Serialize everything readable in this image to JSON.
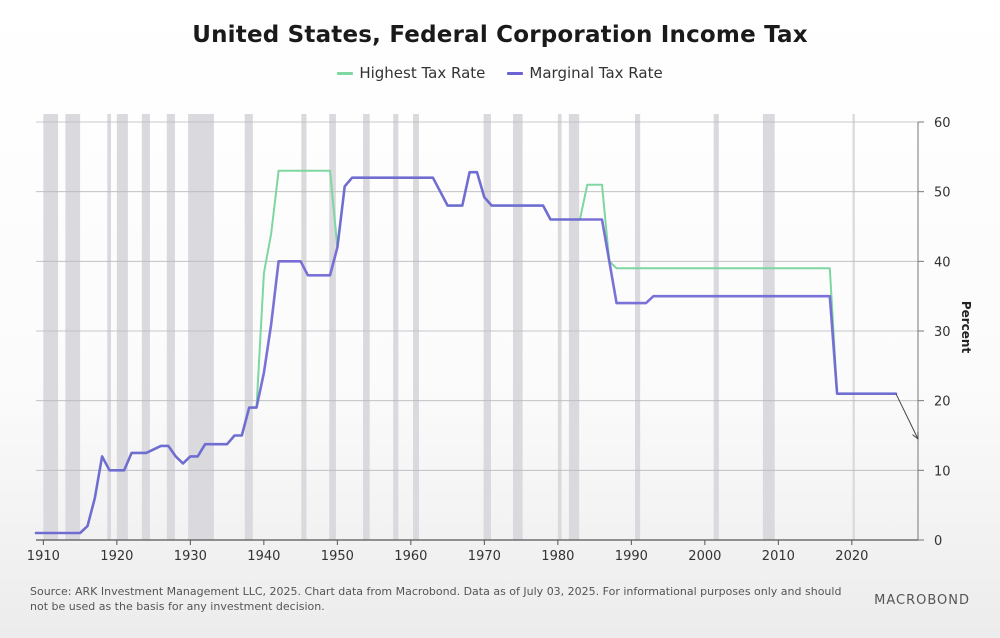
{
  "chart_data": {
    "type": "line",
    "title": "United States, Federal Corporation Income Tax",
    "ylabel": "Percent",
    "xlabel": "",
    "xlim": [
      1909,
      2029
    ],
    "ylim": [
      0,
      60
    ],
    "x_ticks": [
      1910,
      1920,
      1930,
      1940,
      1950,
      1960,
      1970,
      1980,
      1990,
      2000,
      2010,
      2020
    ],
    "y_ticks": [
      0,
      10,
      20,
      30,
      40,
      50,
      60
    ],
    "legend_position": "top-center",
    "grid": true,
    "recession_bands": [
      [
        1910.0,
        1912.0
      ],
      [
        1913.0,
        1915.0
      ],
      [
        1918.7,
        1919.2
      ],
      [
        1920.0,
        1921.5
      ],
      [
        1923.4,
        1924.5
      ],
      [
        1926.8,
        1927.9
      ],
      [
        1929.7,
        1933.2
      ],
      [
        1937.4,
        1938.5
      ],
      [
        1945.1,
        1945.8
      ],
      [
        1948.9,
        1949.8
      ],
      [
        1953.5,
        1954.4
      ],
      [
        1957.6,
        1958.3
      ],
      [
        1960.3,
        1961.1
      ],
      [
        1969.9,
        1970.9
      ],
      [
        1973.9,
        1975.2
      ],
      [
        1980.0,
        1980.5
      ],
      [
        1981.5,
        1982.9
      ],
      [
        1990.5,
        1991.2
      ],
      [
        2001.2,
        2001.9
      ],
      [
        2007.9,
        2009.5
      ],
      [
        2020.1,
        2020.4
      ]
    ],
    "series": [
      {
        "name": "Highest Tax Rate",
        "color": "#7ed6a0",
        "points": [
          [
            1909,
            1
          ],
          [
            1915,
            1
          ],
          [
            1916,
            2
          ],
          [
            1917,
            6
          ],
          [
            1918,
            12
          ],
          [
            1919,
            10
          ],
          [
            1921,
            10
          ],
          [
            1922,
            12.5
          ],
          [
            1924,
            12.5
          ],
          [
            1925,
            13
          ],
          [
            1926,
            13.5
          ],
          [
            1927,
            13.5
          ],
          [
            1928,
            12
          ],
          [
            1929,
            11
          ],
          [
            1930,
            12
          ],
          [
            1931,
            12
          ],
          [
            1932,
            13.75
          ],
          [
            1935,
            13.75
          ],
          [
            1936,
            15
          ],
          [
            1937,
            15
          ],
          [
            1938,
            19
          ],
          [
            1939,
            19
          ],
          [
            1940,
            38.3
          ],
          [
            1941,
            44
          ],
          [
            1942,
            53
          ],
          [
            1949,
            53
          ],
          [
            1950,
            42
          ],
          [
            1951,
            50.75
          ],
          [
            1952,
            52
          ],
          [
            1963,
            52
          ],
          [
            1964,
            50
          ],
          [
            1965,
            48
          ],
          [
            1967,
            48
          ],
          [
            1968,
            52.8
          ],
          [
            1969,
            52.8
          ],
          [
            1970,
            49.2
          ],
          [
            1971,
            48
          ],
          [
            1978,
            48
          ],
          [
            1979,
            46
          ],
          [
            1983,
            46
          ],
          [
            1984,
            51
          ],
          [
            1986,
            51
          ],
          [
            1987,
            40
          ],
          [
            1988,
            39
          ],
          [
            2017,
            39
          ],
          [
            2018,
            21
          ],
          [
            2026,
            21
          ]
        ]
      },
      {
        "name": "Marginal Tax Rate",
        "color": "#6b63d4",
        "points": [
          [
            1909,
            1
          ],
          [
            1915,
            1
          ],
          [
            1916,
            2
          ],
          [
            1917,
            6
          ],
          [
            1918,
            12
          ],
          [
            1919,
            10
          ],
          [
            1921,
            10
          ],
          [
            1922,
            12.5
          ],
          [
            1924,
            12.5
          ],
          [
            1925,
            13
          ],
          [
            1926,
            13.5
          ],
          [
            1927,
            13.5
          ],
          [
            1928,
            12
          ],
          [
            1929,
            11
          ],
          [
            1930,
            12
          ],
          [
            1931,
            12
          ],
          [
            1932,
            13.75
          ],
          [
            1935,
            13.75
          ],
          [
            1936,
            15
          ],
          [
            1937,
            15
          ],
          [
            1938,
            19
          ],
          [
            1939,
            19
          ],
          [
            1940,
            24
          ],
          [
            1941,
            31
          ],
          [
            1942,
            40
          ],
          [
            1945,
            40
          ],
          [
            1946,
            38
          ],
          [
            1949,
            38
          ],
          [
            1950,
            42
          ],
          [
            1951,
            50.75
          ],
          [
            1952,
            52
          ],
          [
            1963,
            52
          ],
          [
            1964,
            50
          ],
          [
            1965,
            48
          ],
          [
            1967,
            48
          ],
          [
            1968,
            52.8
          ],
          [
            1969,
            52.8
          ],
          [
            1970,
            49.2
          ],
          [
            1971,
            48
          ],
          [
            1978,
            48
          ],
          [
            1979,
            46
          ],
          [
            1986,
            46
          ],
          [
            1987,
            40
          ],
          [
            1988,
            34
          ],
          [
            1992,
            34
          ],
          [
            1993,
            35
          ],
          [
            2017,
            35
          ],
          [
            2018,
            21
          ],
          [
            2026,
            21
          ]
        ]
      }
    ],
    "annotation_arrow": {
      "from": [
        2026,
        21
      ],
      "to": [
        2029,
        14.5
      ]
    }
  },
  "source_text": "Source: ARK Investment Management LLC, 2025. Chart data from Macrobond. Data as of July 03, 2025. For informational purposes only and should not be used as the basis for any investment decision.",
  "brand": "MACROBOND"
}
